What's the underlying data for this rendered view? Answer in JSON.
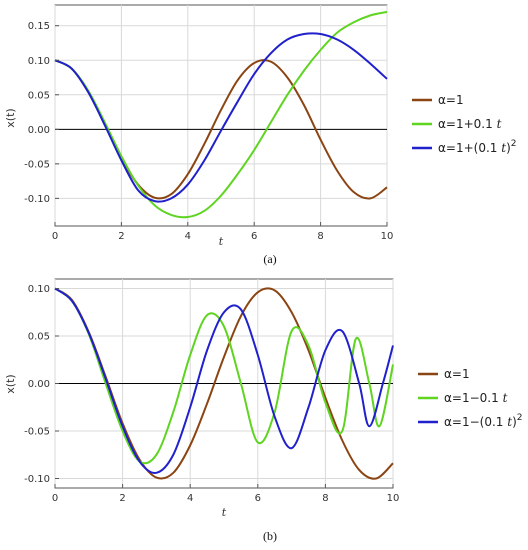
{
  "chart_data": [
    {
      "type": "line",
      "panel_label": "(a)",
      "xlabel": "t",
      "ylabel": "x(t)",
      "xlim": [
        0,
        10
      ],
      "ylim": [
        -0.14,
        0.18
      ],
      "xticks": [
        "0",
        "2",
        "4",
        "6",
        "8",
        "10"
      ],
      "yticks": [
        "0.15",
        "0.10",
        "0.05",
        "0.00",
        "-0.05",
        "-0.10"
      ],
      "grid": true,
      "legend_position": "right",
      "series": [
        {
          "name": "α=1",
          "legend": {
            "prefix": "α=1",
            "suffix": "",
            "sup": ""
          },
          "color": "#8b4513",
          "x": [
            0,
            0.5,
            1,
            1.5,
            2,
            2.5,
            3,
            3.5,
            4,
            4.5,
            5,
            5.5,
            6,
            6.5,
            7,
            7.5,
            8,
            8.5,
            9,
            9.5,
            10
          ],
          "y": [
            0.1,
            0.088,
            0.054,
            0.007,
            -0.042,
            -0.08,
            -0.099,
            -0.094,
            -0.065,
            -0.021,
            0.028,
            0.071,
            0.096,
            0.098,
            0.075,
            0.035,
            -0.015,
            -0.06,
            -0.091,
            -0.1,
            -0.084
          ]
        },
        {
          "name": "α=1+0.1 t",
          "legend": {
            "prefix": "α=1+0.1 ",
            "suffix": "t",
            "sup": ""
          },
          "color": "#5fd421",
          "x": [
            0,
            0.5,
            1,
            1.5,
            2,
            2.5,
            3,
            3.5,
            4,
            4.5,
            5,
            5.5,
            6,
            6.5,
            7,
            7.5,
            8,
            8.5,
            9,
            9.5,
            10
          ],
          "y": [
            0.1,
            0.088,
            0.056,
            0.01,
            -0.039,
            -0.081,
            -0.11,
            -0.124,
            -0.127,
            -0.118,
            -0.096,
            -0.065,
            -0.03,
            0.01,
            0.05,
            0.085,
            0.115,
            0.14,
            0.155,
            0.165,
            0.17
          ]
        },
        {
          "name": "α=1+(0.1 t)2",
          "legend": {
            "prefix": "α=1+(0.1 ",
            "suffix": "t",
            "sup": "2"
          },
          "color": "#2020cc",
          "x": [
            0,
            0.5,
            1,
            1.5,
            2,
            2.5,
            3,
            3.5,
            4,
            4.5,
            5,
            5.5,
            6,
            6.5,
            7,
            7.5,
            8,
            8.5,
            9,
            9.5,
            10
          ],
          "y": [
            0.1,
            0.088,
            0.054,
            0.006,
            -0.045,
            -0.088,
            -0.104,
            -0.1,
            -0.08,
            -0.045,
            -0.002,
            0.04,
            0.08,
            0.11,
            0.13,
            0.138,
            0.138,
            0.13,
            0.115,
            0.095,
            0.073
          ]
        }
      ]
    },
    {
      "type": "line",
      "panel_label": "(b)",
      "xlabel": "t",
      "ylabel": "x(t)",
      "xlim": [
        0,
        10
      ],
      "ylim": [
        -0.11,
        0.11
      ],
      "xticks": [
        "0",
        "2",
        "4",
        "6",
        "8",
        "10"
      ],
      "yticks": [
        "0.10",
        "0.05",
        "0.00",
        "-0.05",
        "-0.10"
      ],
      "grid": true,
      "legend_position": "right",
      "series": [
        {
          "name": "α=1",
          "legend": {
            "prefix": "α=1",
            "suffix": "",
            "sup": ""
          },
          "color": "#8b4513",
          "x": [
            0,
            0.5,
            1,
            1.5,
            2,
            2.5,
            3,
            3.5,
            4,
            4.5,
            5,
            5.5,
            6,
            6.5,
            7,
            7.5,
            8,
            8.5,
            9,
            9.5,
            10
          ],
          "y": [
            0.1,
            0.088,
            0.054,
            0.007,
            -0.042,
            -0.08,
            -0.099,
            -0.094,
            -0.065,
            -0.021,
            0.028,
            0.071,
            0.096,
            0.098,
            0.075,
            0.035,
            -0.015,
            -0.06,
            -0.091,
            -0.1,
            -0.084
          ]
        },
        {
          "name": "α=1−0.1 t",
          "legend": {
            "prefix": "α=1−0.1 ",
            "suffix": "t",
            "sup": ""
          },
          "color": "#5fd421",
          "x": [
            0,
            0.5,
            1,
            1.5,
            2,
            2.5,
            3,
            3.5,
            4,
            4.5,
            5,
            5.5,
            6,
            6.5,
            7,
            7.5,
            8,
            8.5,
            8.9,
            9.3,
            9.6,
            10
          ],
          "y": [
            0.1,
            0.087,
            0.052,
            0.0,
            -0.05,
            -0.082,
            -0.075,
            -0.03,
            0.03,
            0.072,
            0.06,
            0.0,
            -0.062,
            -0.03,
            0.055,
            0.04,
            -0.02,
            -0.05,
            0.047,
            0.0,
            -0.045,
            0.02
          ]
        },
        {
          "name": "α=1−(0.1 t)2",
          "legend": {
            "prefix": "α=1−(0.1 ",
            "suffix": "t",
            "sup": "2"
          },
          "color": "#2020cc",
          "x": [
            0,
            0.5,
            1,
            1.5,
            2,
            2.5,
            3,
            3.5,
            4,
            4.5,
            5,
            5.5,
            6,
            6.5,
            7,
            7.5,
            8,
            8.5,
            9,
            9.3,
            9.7,
            10
          ],
          "y": [
            0.1,
            0.087,
            0.053,
            0.005,
            -0.045,
            -0.082,
            -0.094,
            -0.075,
            -0.025,
            0.035,
            0.075,
            0.078,
            0.03,
            -0.035,
            -0.068,
            -0.025,
            0.035,
            0.055,
            0.0,
            -0.045,
            0.0,
            0.04
          ]
        }
      ]
    }
  ]
}
